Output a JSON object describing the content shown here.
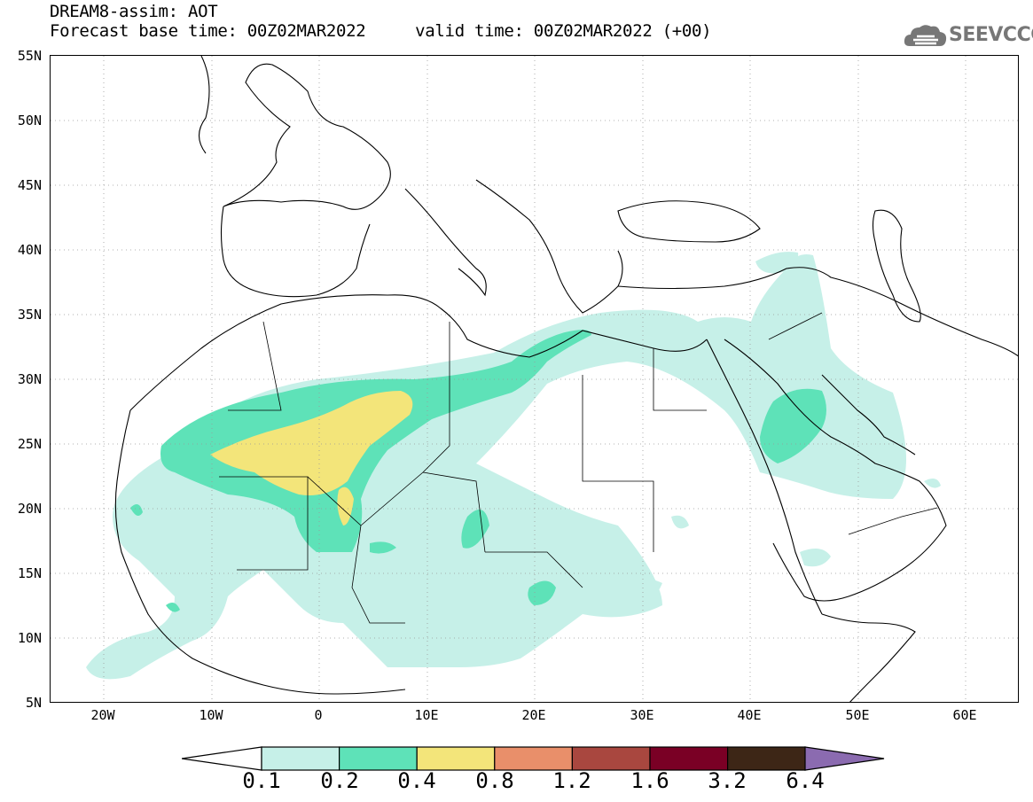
{
  "header": {
    "title_line1": "DREAM8-assim: AOT",
    "title_line2": "Forecast base time: 00Z02MAR2022     valid time: 00Z02MAR2022 (+00)"
  },
  "logo": {
    "text": "SEEVCCC",
    "icon": "cloud-icon",
    "color": "#777777"
  },
  "map": {
    "lat_labels": [
      "55N",
      "50N",
      "45N",
      "40N",
      "35N",
      "30N",
      "25N",
      "20N",
      "15N",
      "10N",
      "5N"
    ],
    "lon_labels": [
      "20W",
      "10W",
      "0",
      "10E",
      "20E",
      "30E",
      "40E",
      "50E",
      "60E"
    ],
    "lat_range": [
      5,
      55
    ],
    "lon_range": [
      -25,
      65
    ],
    "grid": "dotted"
  },
  "colorbar": {
    "labels": [
      "0.1",
      "0.2",
      "0.4",
      "0.8",
      "1.2",
      "1.6",
      "3.2",
      "6.4"
    ],
    "colors": [
      "#c6f0e8",
      "#5ee2b8",
      "#f3e57a",
      "#e98f6a",
      "#a9473f",
      "#7a0025",
      "#3d2616",
      "#8b6bb0"
    ]
  }
}
